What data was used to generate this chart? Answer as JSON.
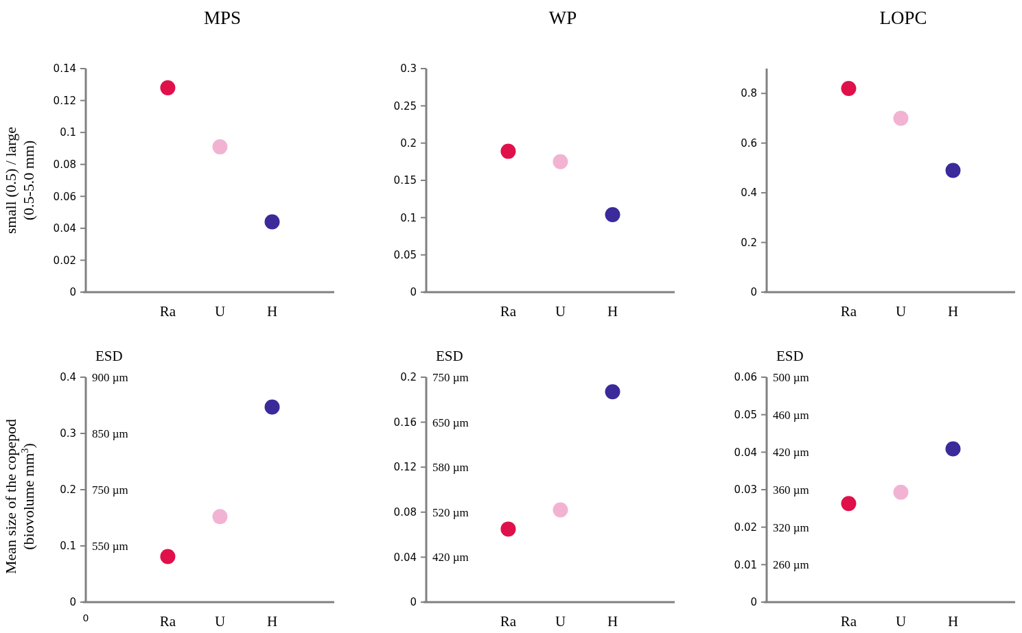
{
  "chart_data": [
    {
      "type": "scatter",
      "title": "MPS",
      "ylabel": "small (0.5) / large (0.5-5.0 mm)",
      "categories": [
        "Ra",
        "U",
        "H"
      ],
      "values": [
        0.128,
        0.091,
        0.044
      ],
      "colors": [
        "#e0104a",
        "#f2b3d3",
        "#3a2a9a"
      ],
      "marker": "circle",
      "ylim": [
        0,
        0.14
      ],
      "yticks": [
        0,
        0.02,
        0.04,
        0.06,
        0.08,
        0.1,
        0.12,
        0.14
      ],
      "grid": false,
      "legend": false
    },
    {
      "type": "scatter",
      "title": "WP",
      "categories": [
        "Ra",
        "U",
        "H"
      ],
      "values": [
        0.189,
        0.175,
        0.104
      ],
      "colors": [
        "#e0104a",
        "#f2b3d3",
        "#3a2a9a"
      ],
      "marker": "circle",
      "ylim": [
        0,
        0.3
      ],
      "yticks": [
        0,
        0.05,
        0.1,
        0.15,
        0.2,
        0.25,
        0.3
      ],
      "grid": false,
      "legend": false
    },
    {
      "type": "scatter",
      "title": "LOPC",
      "categories": [
        "Ra",
        "U",
        "H"
      ],
      "values": [
        0.82,
        0.7,
        0.49
      ],
      "colors": [
        "#e0104a",
        "#f2b3d3",
        "#3a2a9a"
      ],
      "marker": "circle",
      "ylim": [
        0,
        0.9
      ],
      "yticks": [
        0,
        0.2,
        0.4,
        0.6,
        0.8
      ],
      "grid": false,
      "legend": false
    },
    {
      "type": "scatter",
      "ylabel": "Mean size of the copepod (biovolume mm$^{3}$)",
      "categories": [
        "Ra",
        "U",
        "H"
      ],
      "values": [
        0.081,
        0.152,
        0.347
      ],
      "colors": [
        "#e0104a",
        "#f2b3d3",
        "#3a2a9a"
      ],
      "marker": "circle",
      "ylim": [
        0,
        0.4
      ],
      "yticks": [
        0,
        0.1,
        0.2,
        0.3,
        0.4
      ],
      "annotations": [
        "ESD",
        "900 µm",
        "850 µm",
        "750 µm",
        "550 µm",
        "0"
      ],
      "grid": false,
      "legend": false
    },
    {
      "type": "scatter",
      "categories": [
        "Ra",
        "U",
        "H"
      ],
      "values": [
        0.065,
        0.082,
        0.187
      ],
      "colors": [
        "#e0104a",
        "#f2b3d3",
        "#3a2a9a"
      ],
      "marker": "circle",
      "ylim": [
        0,
        0.2
      ],
      "yticks": [
        0,
        0.04,
        0.08,
        0.12,
        0.16,
        0.2
      ],
      "annotations": [
        "ESD",
        "750 µm",
        "650 µm",
        "580 µm",
        "520 µm",
        "420 µm"
      ],
      "grid": false,
      "legend": false
    },
    {
      "type": "scatter",
      "categories": [
        "Ra",
        "U",
        "H"
      ],
      "values": [
        0.0263,
        0.0293,
        0.0409
      ],
      "colors": [
        "#e0104a",
        "#f2b3d3",
        "#3a2a9a"
      ],
      "marker": "circle",
      "ylim": [
        0,
        0.06
      ],
      "yticks": [
        0,
        0.01,
        0.02,
        0.03,
        0.04,
        0.05,
        0.06
      ],
      "annotations": [
        "ESD",
        "500 µm",
        "460 µm",
        "420 µm",
        "360 µm",
        "320 µm",
        "260 µm"
      ],
      "grid": false,
      "legend": false
    }
  ]
}
